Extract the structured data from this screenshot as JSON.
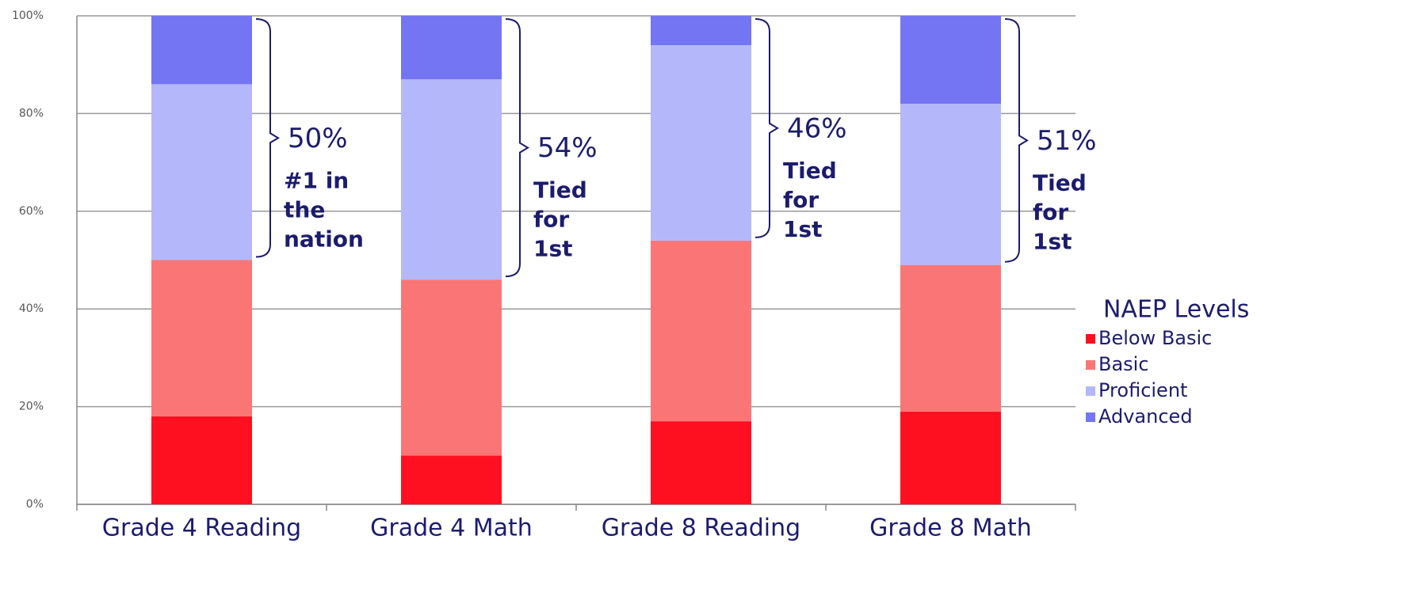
{
  "chart_data": {
    "type": "stacked_bar",
    "categories": [
      "Grade 4 Reading",
      "Grade 4 Math",
      "Grade 8 Reading",
      "Grade 8 Math"
    ],
    "series": [
      {
        "name": "Below Basic",
        "color": "#ff1020",
        "values": [
          18,
          10,
          17,
          19
        ]
      },
      {
        "name": "Basic",
        "color": "#fa7575",
        "values": [
          32,
          36,
          37,
          30
        ]
      },
      {
        "name": "Proficient",
        "color": "#b4b8fa",
        "values": [
          36,
          41,
          40,
          33
        ]
      },
      {
        "name": "Advanced",
        "color": "#7475f2",
        "values": [
          14,
          13,
          6,
          18
        ]
      }
    ],
    "ylim": [
      0,
      100
    ],
    "yticks": [
      {
        "value": 0,
        "label": "0%"
      },
      {
        "value": 20,
        "label": "20%"
      },
      {
        "value": 40,
        "label": "40%"
      },
      {
        "value": 60,
        "label": "60%"
      },
      {
        "value": 80,
        "label": "80%"
      },
      {
        "value": 100,
        "label": "100%"
      }
    ],
    "grid": true,
    "legend_title": "NAEP Levels",
    "legend_position": "right",
    "annotations": [
      {
        "text": "50%",
        "lines": [
          "#1 in",
          "the",
          "nation"
        ]
      },
      {
        "text": "54%",
        "lines": [
          "Tied",
          "for",
          "1st"
        ]
      },
      {
        "text": "46%",
        "lines": [
          "Tied",
          "for",
          "1st"
        ]
      },
      {
        "text": "51%",
        "lines": [
          "Tied",
          "for",
          "1st"
        ]
      }
    ]
  }
}
